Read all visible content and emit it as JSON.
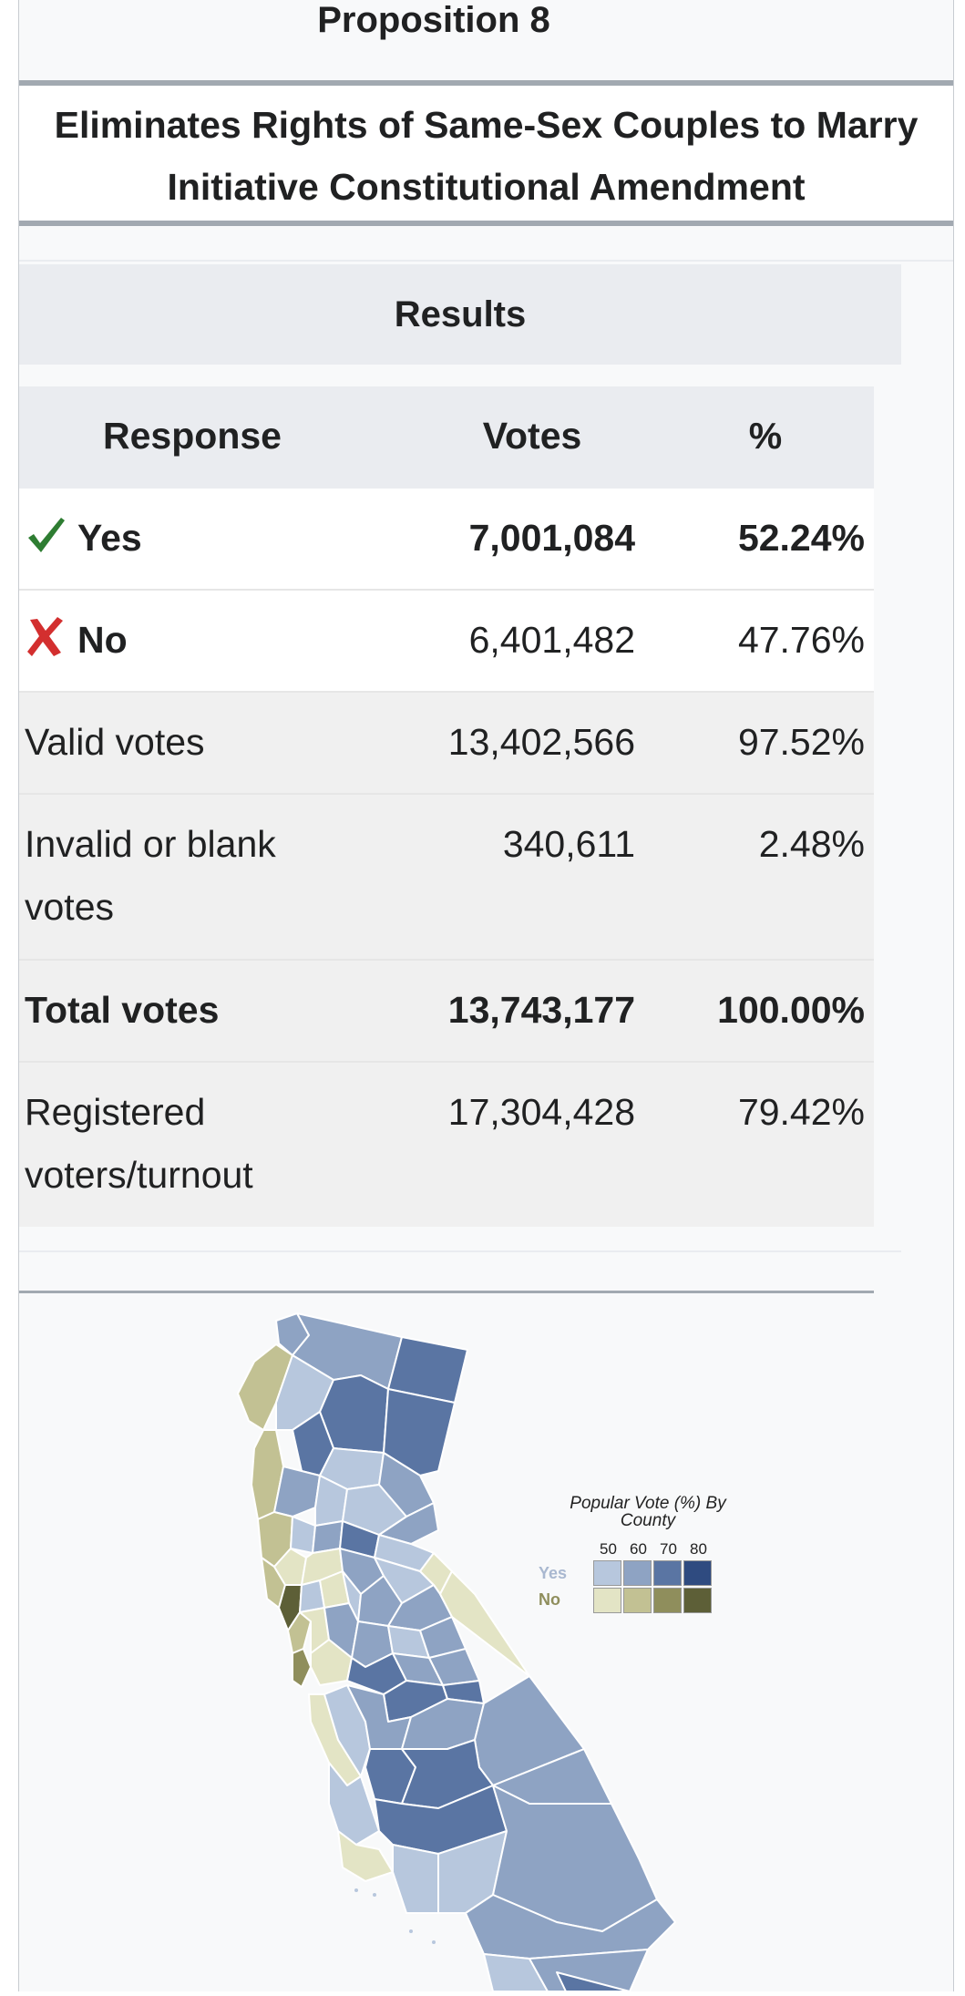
{
  "header": {
    "proposition": "Proposition 8",
    "subtitle_line1": "Eliminates Rights of Same-Sex Couples to Marry",
    "subtitle_line2": "Initiative Constitutional Amendment"
  },
  "results": {
    "title": "Results",
    "columns": [
      "Response",
      "Votes",
      "%"
    ],
    "rows": [
      {
        "response": "Yes",
        "votes": "7,001,084",
        "pct": "52.24%",
        "icon": "check-icon"
      },
      {
        "response": "No",
        "votes": "6,401,482",
        "pct": "47.76%",
        "icon": "cross-icon"
      },
      {
        "response": "Valid votes",
        "votes": "13,402,566",
        "pct": "97.52%"
      },
      {
        "response": "Invalid or blank",
        "response2": "votes",
        "votes": "340,611",
        "pct": "2.48%"
      },
      {
        "response": "Total votes",
        "votes": "13,743,177",
        "pct": "100.00%"
      },
      {
        "response": "Registered",
        "response2": "voters/turnout",
        "votes": "17,304,428",
        "pct": "79.42%"
      }
    ]
  },
  "map": {
    "legend_title_line1": "Popular Vote (%) By",
    "legend_title_line2": "County",
    "ticks": [
      "50",
      "60",
      "70",
      "80"
    ],
    "yes_label": "Yes",
    "no_label": "No",
    "yes_colors": [
      "#b7c7dd",
      "#8ea3c3",
      "#5a75a3",
      "#2f4b80"
    ],
    "no_colors": [
      "#e3e4c5",
      "#c2c193",
      "#8f8e5c",
      "#5d5f37"
    ]
  },
  "colors": {
    "check": "#2e7d32",
    "cross": "#d32f2f",
    "rule": "#a2a9b1"
  }
}
